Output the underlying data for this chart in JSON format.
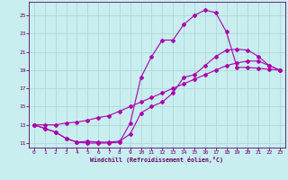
{
  "xlabel": "Windchill (Refroidissement éolien,°C)",
  "bg_color": "#c8eef0",
  "grid_color": "#b0d8d8",
  "line_color": "#aa00aa",
  "xlim": [
    -0.5,
    23.5
  ],
  "ylim": [
    10.5,
    26.5
  ],
  "xticks": [
    0,
    1,
    2,
    3,
    4,
    5,
    6,
    7,
    8,
    9,
    10,
    11,
    12,
    13,
    14,
    15,
    16,
    17,
    18,
    19,
    20,
    21,
    22,
    23
  ],
  "yticks": [
    11,
    13,
    15,
    17,
    19,
    21,
    23,
    25
  ],
  "curve1_x": [
    0,
    1,
    2,
    3,
    4,
    5,
    6,
    7,
    8,
    9,
    10,
    11,
    12,
    13,
    14,
    15,
    16,
    17,
    18,
    19,
    20,
    21,
    22,
    23
  ],
  "curve1_y": [
    13.0,
    12.6,
    12.2,
    11.5,
    11.1,
    11.0,
    11.0,
    11.0,
    11.1,
    13.2,
    18.2,
    20.5,
    22.3,
    22.3,
    24.0,
    25.0,
    25.6,
    25.3,
    23.2,
    19.3,
    19.3,
    19.2,
    19.1,
    19.0
  ],
  "curve2_x": [
    0,
    1,
    2,
    3,
    4,
    5,
    6,
    7,
    8,
    9,
    10,
    11,
    12,
    13,
    14,
    15,
    16,
    17,
    18,
    19,
    20,
    21,
    22,
    23
  ],
  "curve2_y": [
    13.0,
    12.6,
    12.2,
    11.5,
    11.1,
    11.2,
    11.1,
    11.1,
    11.2,
    12.0,
    14.3,
    15.0,
    15.5,
    16.5,
    18.2,
    18.5,
    19.5,
    20.5,
    21.2,
    21.3,
    21.2,
    20.5,
    19.5,
    19.0
  ],
  "curve3_x": [
    0,
    1,
    2,
    3,
    4,
    5,
    6,
    7,
    8,
    9,
    10,
    11,
    12,
    13,
    14,
    15,
    16,
    17,
    18,
    19,
    20,
    21,
    22,
    23
  ],
  "curve3_y": [
    13.0,
    13.0,
    13.0,
    13.2,
    13.3,
    13.5,
    13.8,
    14.0,
    14.5,
    15.0,
    15.5,
    16.0,
    16.5,
    17.0,
    17.5,
    18.0,
    18.5,
    19.0,
    19.5,
    19.8,
    20.0,
    20.0,
    19.5,
    19.0
  ]
}
